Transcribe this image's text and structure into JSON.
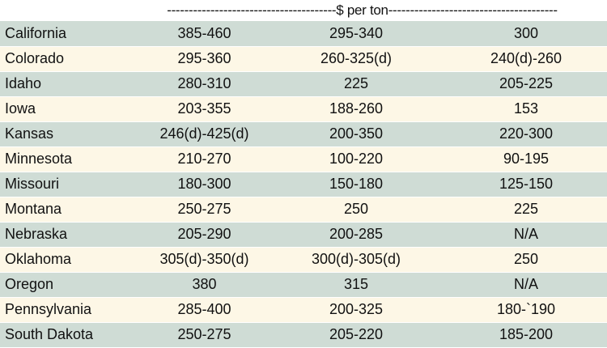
{
  "header": {
    "unit_label": "---------------------------------------$ per ton---------------------------------------"
  },
  "rows": [
    {
      "state": "California",
      "c1": "385-460",
      "c2": "295-340",
      "c3": "300"
    },
    {
      "state": "Colorado",
      "c1": "295-360",
      "c2": "260-325(d)",
      "c3": "240(d)-260"
    },
    {
      "state": "Idaho",
      "c1": "280-310",
      "c2": "225",
      "c3": "205-225"
    },
    {
      "state": "Iowa",
      "c1": "203-355",
      "c2": "188-260",
      "c3": "153"
    },
    {
      "state": "Kansas",
      "c1": "246(d)-425(d)",
      "c2": "200-350",
      "c3": "220-300"
    },
    {
      "state": "Minnesota",
      "c1": "210-270",
      "c2": "100-220",
      "c3": "90-195"
    },
    {
      "state": "Missouri",
      "c1": "180-300",
      "c2": "150-180",
      "c3": "125-150"
    },
    {
      "state": "Montana",
      "c1": "250-275",
      "c2": "250",
      "c3": "225"
    },
    {
      "state": "Nebraska",
      "c1": "205-290",
      "c2": "200-285",
      "c3": "N/A"
    },
    {
      "state": "Oklahoma",
      "c1": "305(d)-350(d)",
      "c2": "300(d)-305(d)",
      "c3": "250"
    },
    {
      "state": "Oregon",
      "c1": "380",
      "c2": "315",
      "c3": "N/A"
    },
    {
      "state": "Pennsylvania",
      "c1": "285-400",
      "c2": "200-325",
      "c3": "180-`190"
    },
    {
      "state": "South Dakota",
      "c1": "250-275",
      "c2": "205-220",
      "c3": "185-200"
    }
  ]
}
